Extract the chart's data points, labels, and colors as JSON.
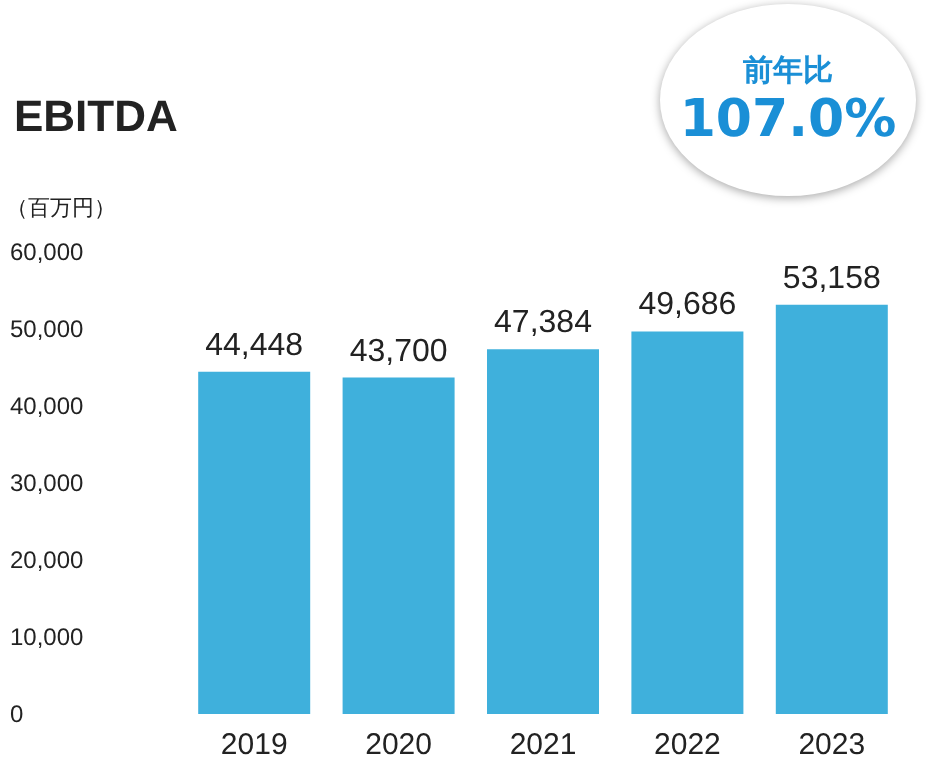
{
  "chart_data": {
    "type": "bar",
    "title": "EBITDA",
    "ylabel": "（百万円）",
    "categories": [
      "2019",
      "2020",
      "2021",
      "2022",
      "2023"
    ],
    "values": [
      44448,
      43700,
      47384,
      49686,
      53158
    ],
    "value_labels": [
      "44,448",
      "43,700",
      "47,384",
      "49,686",
      "53,158"
    ],
    "color": "#3fb0dc",
    "ylim": [
      0,
      60000
    ],
    "yticks": [
      {
        "value": 0,
        "label": "0"
      },
      {
        "value": 10000,
        "label": "10,000"
      },
      {
        "value": 20000,
        "label": "20,000"
      },
      {
        "value": 30000,
        "label": "30,000"
      },
      {
        "value": 40000,
        "label": "40,000"
      },
      {
        "value": 50000,
        "label": "50,000"
      },
      {
        "value": 60000,
        "label": "60,000"
      }
    ],
    "annotations": [
      "前年比",
      "107.0%"
    ],
    "grid": false
  }
}
